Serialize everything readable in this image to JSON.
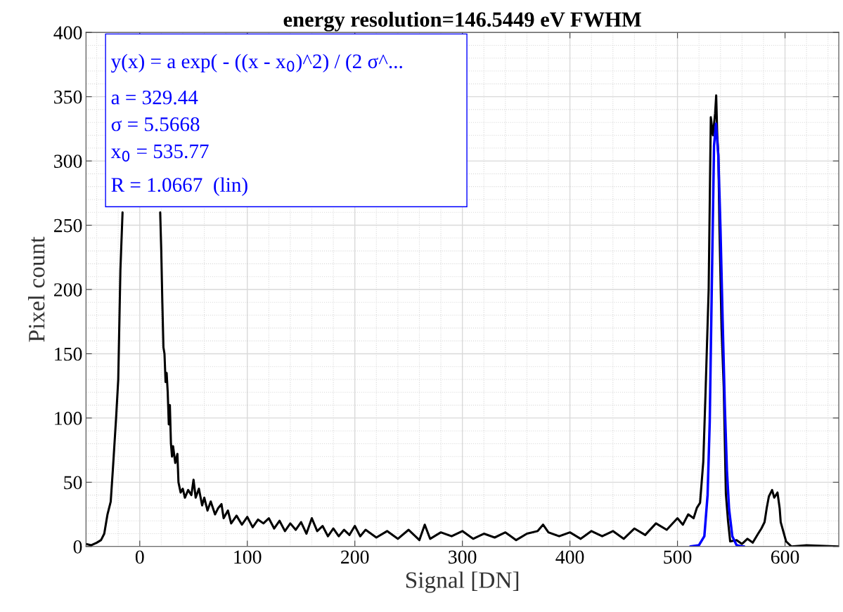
{
  "chart_data": {
    "type": "line",
    "title": "energy resolution=146.5449 eV FWHM",
    "xlabel": "Signal [DN]",
    "ylabel": "Pixel count",
    "xlim": [
      -50,
      650
    ],
    "ylim": [
      0,
      400
    ],
    "xticks": [
      0,
      100,
      200,
      300,
      400,
      500,
      600
    ],
    "yticks": [
      0,
      50,
      100,
      150,
      200,
      250,
      300,
      350,
      400
    ],
    "grid": true,
    "annotations": [
      "y(x) = a exp( - ((x - x$_{0}$)^2) / (2 σ^...",
      "a = 329.44",
      "σ = 5.5668",
      "x$_{0}$ = 535.77",
      "R = 1.0667  (lin)"
    ],
    "series": [
      {
        "color": "#000000",
        "x": [
          -50,
          -45,
          -40,
          -36,
          -33,
          -30,
          -27,
          -25,
          -22,
          -20,
          -18,
          -16,
          0,
          19,
          20,
          21,
          22,
          23,
          24,
          25,
          26,
          27,
          28,
          29,
          30,
          31,
          33,
          35,
          36,
          38,
          40,
          42,
          45,
          48,
          50,
          52,
          55,
          58,
          60,
          63,
          66,
          70,
          73,
          76,
          78,
          82,
          85,
          90,
          95,
          100,
          105,
          110,
          115,
          120,
          125,
          130,
          135,
          140,
          145,
          150,
          155,
          160,
          165,
          170,
          175,
          180,
          185,
          190,
          195,
          200,
          205,
          210,
          220,
          230,
          240,
          250,
          260,
          265,
          270,
          280,
          290,
          300,
          310,
          320,
          330,
          340,
          350,
          360,
          370,
          375,
          380,
          390,
          400,
          410,
          420,
          430,
          440,
          450,
          460,
          470,
          480,
          490,
          500,
          505,
          510,
          515,
          518,
          521,
          524,
          526,
          529,
          531,
          533,
          535,
          536,
          537,
          538,
          539,
          541,
          543,
          545,
          547,
          549,
          555,
          560,
          565,
          570,
          575,
          578,
          581,
          583,
          585,
          588,
          590,
          593,
          595,
          596,
          599,
          601,
          606,
          620,
          650
        ],
        "values": [
          2,
          1,
          3,
          5,
          10,
          25,
          35,
          60,
          100,
          130,
          215,
          260,
          null,
          260,
          230,
          190,
          155,
          150,
          128,
          135,
          120,
          95,
          110,
          80,
          70,
          78,
          65,
          72,
          50,
          42,
          45,
          38,
          44,
          40,
          52,
          38,
          45,
          32,
          38,
          28,
          35,
          25,
          30,
          33,
          22,
          28,
          18,
          24,
          17,
          23,
          15,
          21,
          18,
          22,
          14,
          20,
          12,
          18,
          13,
          19,
          10,
          22,
          12,
          16,
          8,
          14,
          8,
          13,
          9,
          16,
          8,
          13,
          7,
          12,
          6,
          13,
          5,
          17,
          6,
          11,
          8,
          12,
          6,
          10,
          7,
          11,
          5,
          10,
          12,
          17,
          11,
          8,
          11,
          6,
          12,
          8,
          12,
          6,
          14,
          9,
          18,
          13,
          22,
          17,
          25,
          22,
          30,
          34,
          66,
          117,
          200,
          334,
          320,
          337,
          351,
          320,
          305,
          249,
          170,
          124,
          41,
          20,
          4,
          5,
          2,
          6,
          3,
          10,
          14,
          19,
          30,
          39,
          44,
          38,
          42,
          30,
          19,
          10,
          4,
          0,
          1,
          0
        ]
      },
      {
        "color": "#0000ff",
        "x": [
          512,
          520,
          525,
          528,
          530,
          532,
          534,
          535.8,
          538,
          540,
          542,
          544,
          546,
          548,
          551,
          555,
          560,
          562
        ],
        "values": [
          0,
          1,
          8,
          40,
          97,
          207,
          312,
          329,
          304,
          247,
          176,
          110,
          59,
          29,
          8,
          1,
          0,
          0
        ]
      }
    ]
  }
}
